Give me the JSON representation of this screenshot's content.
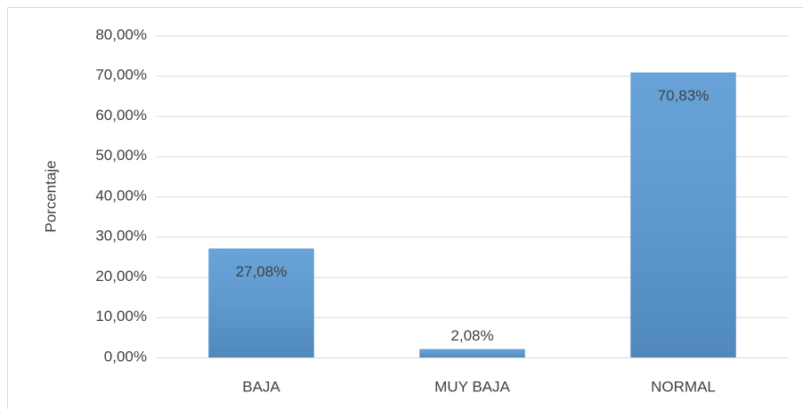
{
  "chart_data": {
    "type": "bar",
    "y_label": "Porcentaje",
    "categories": [
      "BAJA",
      "MUY BAJA",
      "NORMAL"
    ],
    "values": [
      27.08,
      2.08,
      70.83
    ],
    "value_labels": [
      "27,08%",
      "2,08%",
      "70,83%"
    ],
    "color": "#5b9bd5",
    "ylim": [
      0,
      80
    ],
    "yticks": [
      {
        "value": 0,
        "label": "0,00%"
      },
      {
        "value": 10,
        "label": "10,00%"
      },
      {
        "value": 20,
        "label": "20,00%"
      },
      {
        "value": 30,
        "label": "30,00%"
      },
      {
        "value": 40,
        "label": "40,00%"
      },
      {
        "value": 50,
        "label": "50,00%"
      },
      {
        "value": 60,
        "label": "60,00%"
      },
      {
        "value": 70,
        "label": "70,00%"
      },
      {
        "value": 80,
        "label": "80,00%"
      }
    ],
    "grid": true
  }
}
